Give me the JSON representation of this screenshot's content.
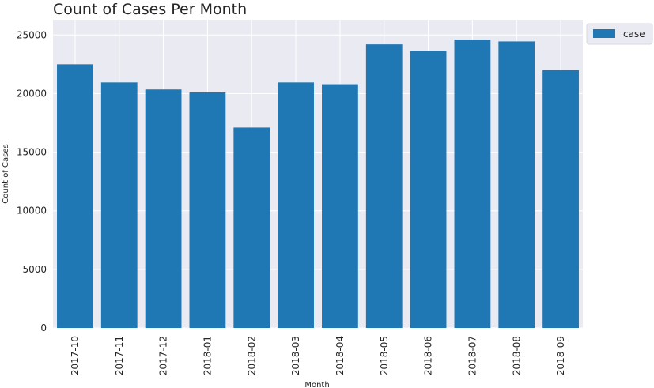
{
  "chart_data": {
    "type": "bar",
    "title": "Count of Cases Per Month",
    "xlabel": "Month",
    "ylabel": "Count of Cases",
    "categories": [
      "2017-10",
      "2017-11",
      "2017-12",
      "2018-01",
      "2018-02",
      "2018-03",
      "2018-04",
      "2018-05",
      "2018-06",
      "2018-07",
      "2018-08",
      "2018-09"
    ],
    "series": [
      {
        "name": "case",
        "values": [
          22500,
          20950,
          20350,
          20100,
          17100,
          20950,
          20800,
          24200,
          23650,
          24600,
          24450,
          22000
        ]
      }
    ],
    "yticks": [
      0,
      5000,
      10000,
      15000,
      20000,
      25000
    ],
    "ylim": [
      0,
      26300
    ],
    "grid": true,
    "legend_position": "outside-top-right",
    "colors": {
      "bar": "#1f77b4",
      "plot_background": "#eaeaf2",
      "grid": "#ffffff",
      "text": "#262626"
    }
  }
}
